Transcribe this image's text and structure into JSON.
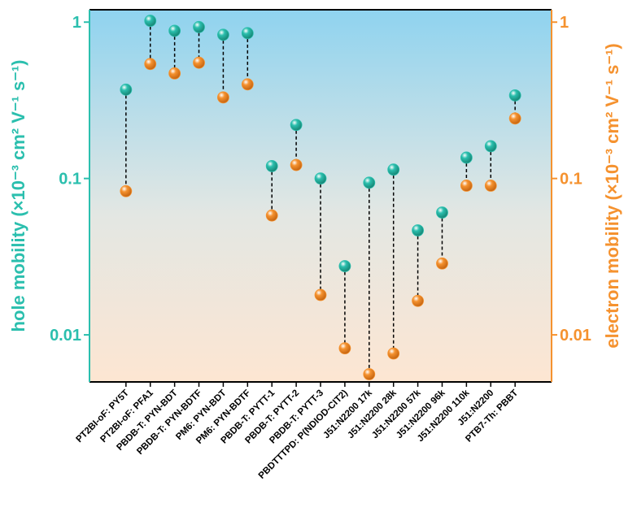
{
  "chart_data": {
    "type": "dumbbell",
    "y_label": "hole mobility (×10⁻³ cm² V⁻¹ s⁻¹)",
    "y2_label": "electron mobility (×10⁻³ cm² V⁻¹ s⁻¹)",
    "categories": [
      "PT2BI-oF: PY5T",
      "PT2BI-oF: PFA1",
      "PBDB-T: PYN-BDT",
      "PBDB-T: PYN-BDTF",
      "PM6: PYN-BDT",
      "PM6: PYN-BDTF",
      "PBDB-T: PYTT-1",
      "PBDB-T: PYTT-2",
      "PBDB-T: PYTT-3",
      "PBDTTTPD: P(NDIOD-CIT2)",
      "J51:N2200 17k",
      "J51:N2200 28k",
      "J51:N2200 57k",
      "J51:N2200 96k",
      "J51:N2200 110k",
      "J51:N2200",
      "PTB7-Th: PBBT"
    ],
    "series": [
      {
        "name": "hole mobility",
        "color": "#2bbfae",
        "values": [
          0.37,
          1.02,
          0.88,
          0.93,
          0.83,
          0.85,
          0.12,
          0.22,
          0.1,
          0.0275,
          0.094,
          0.114,
          0.0466,
          0.0606,
          0.136,
          0.161,
          0.34
        ]
      },
      {
        "name": "electron mobility",
        "color": "#f5922f",
        "axis": "y2",
        "values": [
          0.083,
          0.54,
          0.47,
          0.55,
          0.33,
          0.4,
          0.058,
          0.122,
          0.018,
          0.0082,
          0.0056,
          0.0076,
          0.0165,
          0.0286,
          0.09,
          0.09,
          0.242
        ]
      }
    ],
    "log_y": true,
    "ylim": [
      0.005,
      1.2
    ],
    "yticks": [
      0.01,
      0.1,
      1
    ],
    "y2lim": [
      0.005,
      1.2
    ],
    "y2ticks": [
      0.01,
      0.1,
      1
    ]
  }
}
